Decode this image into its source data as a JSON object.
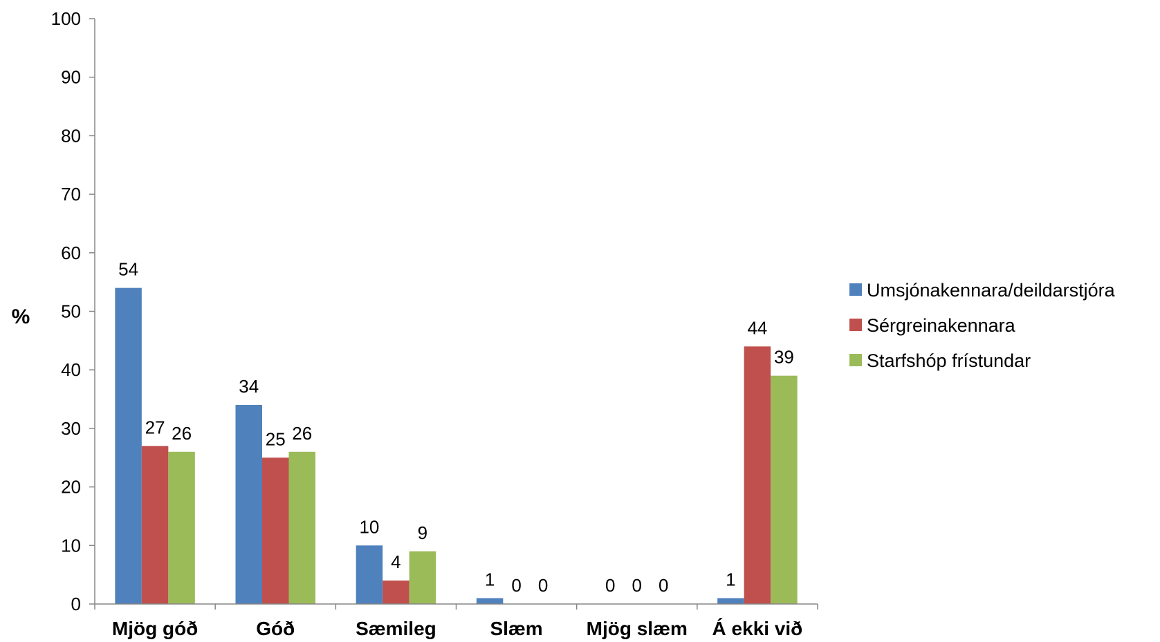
{
  "chart_data": {
    "type": "bar",
    "title": "",
    "xlabel": "",
    "ylabel": "%",
    "ylim": [
      0,
      100
    ],
    "yticks": [
      0,
      10,
      20,
      30,
      40,
      50,
      60,
      70,
      80,
      90,
      100
    ],
    "grid": false,
    "legend_position": "right",
    "categories": [
      "Mjög góð",
      "Góð",
      "Sæmileg",
      "Slæm",
      "Mjög slæm",
      "Á ekki við"
    ],
    "series": [
      {
        "name": "Umsjónakennara/deildarstjóra",
        "color": "#4F81BD",
        "values": [
          54,
          34,
          10,
          1,
          0,
          1
        ]
      },
      {
        "name": "Sérgreinakennara",
        "color": "#C0504D",
        "values": [
          27,
          25,
          4,
          0,
          0,
          44
        ]
      },
      {
        "name": "Starfshóp frístundar",
        "color": "#9BBB59",
        "values": [
          26,
          26,
          9,
          0,
          0,
          39
        ]
      }
    ]
  }
}
